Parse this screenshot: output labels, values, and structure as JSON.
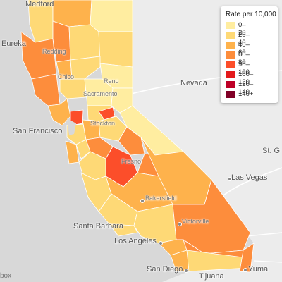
{
  "legend": {
    "title": "Rate per 10,000",
    "bins": [
      {
        "label": "0–20",
        "color": "#ffeda0"
      },
      {
        "label": "20–40",
        "color": "#fed976"
      },
      {
        "label": "40–60",
        "color": "#feb24c"
      },
      {
        "label": "60–80",
        "color": "#fd8d3c"
      },
      {
        "label": "90–100",
        "color": "#fc4e2a"
      },
      {
        "label": "100–120",
        "color": "#e31a1c"
      },
      {
        "label": "120–140",
        "color": "#bd0026"
      },
      {
        "label": "140+",
        "color": "#800026"
      }
    ]
  },
  "places": {
    "medford": "Medford",
    "eureka": "Eureka",
    "reno": "Reno",
    "nevada": "Nevada",
    "san_francisco": "San Francisco",
    "st_g": "St. G",
    "las_vegas": "Las Vegas",
    "bakersfield": "Bakersfield",
    "victorville": "Victorville",
    "santa_barbara": "Santa Barbara",
    "los_angeles": "Los Angeles",
    "san_diego": "San Diego",
    "tijuana": "Tijuana",
    "yuma": "Yuma",
    "redding": "Redding",
    "chico": "Chico",
    "sacramento": "Sacramento",
    "stockton": "Stockton",
    "fresno": "Fresno"
  },
  "attribution": "box"
}
